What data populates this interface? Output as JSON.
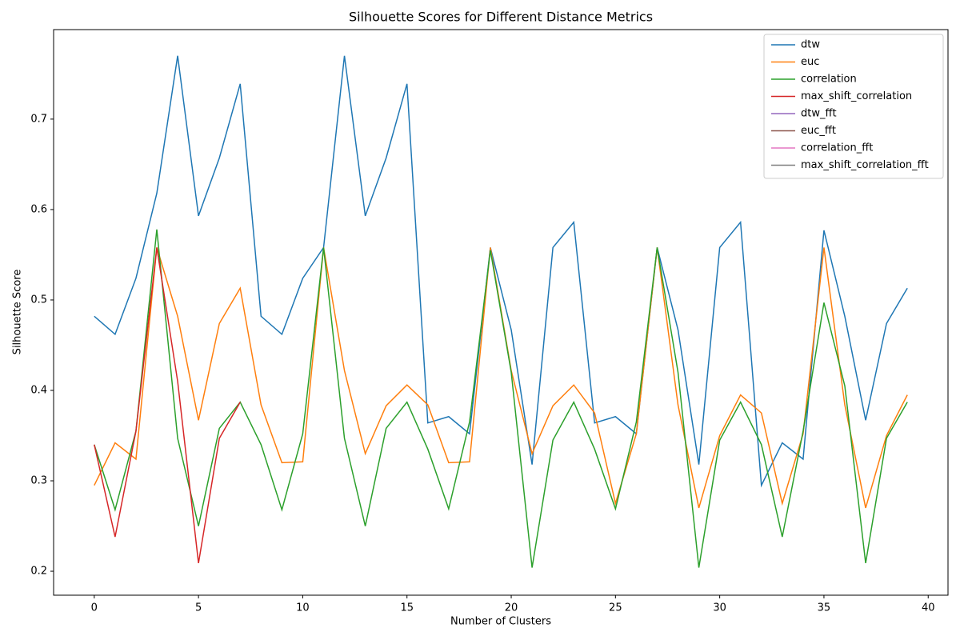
{
  "chart_data": {
    "type": "line",
    "title": "Silhouette Scores for Different Distance Metrics",
    "x_label": "Number of Clusters",
    "y_label": "Silhouette Score",
    "x": [
      0,
      1,
      2,
      3,
      4,
      5,
      6,
      7,
      8,
      9,
      10,
      11,
      12,
      13,
      14,
      15,
      16,
      17,
      18,
      19,
      20,
      21,
      22,
      23,
      24,
      25,
      26,
      27,
      28,
      29,
      30,
      31,
      32,
      33,
      34,
      35,
      36,
      37,
      38,
      39
    ],
    "series": [
      {
        "name": "dtw",
        "color": "#1f77b4",
        "values": [
          0.482,
          0.462,
          0.524,
          0.618,
          0.77,
          0.593,
          0.657,
          0.739,
          0.482,
          0.462,
          0.524,
          0.558,
          0.77,
          0.593,
          0.657,
          0.739,
          0.364,
          0.371,
          0.352,
          0.558,
          0.467,
          0.318,
          0.558,
          0.586,
          0.364,
          0.371,
          0.352,
          0.558,
          0.467,
          0.318,
          0.558,
          0.586,
          0.295,
          0.342,
          0.324,
          0.577,
          0.482,
          0.367,
          0.474,
          0.513
        ]
      },
      {
        "name": "euc",
        "color": "#ff7f0e",
        "values": [
          0.295,
          0.342,
          0.324,
          0.558,
          0.482,
          0.367,
          0.474,
          0.513,
          0.384,
          0.32,
          0.321,
          0.558,
          0.422,
          0.33,
          0.383,
          0.406,
          0.384,
          0.32,
          0.321,
          0.558,
          0.422,
          0.33,
          0.383,
          0.406,
          0.375,
          0.275,
          0.352,
          0.558,
          0.384,
          0.27,
          0.35,
          0.395,
          0.375,
          0.275,
          0.352,
          0.558,
          0.384,
          0.27,
          0.35,
          0.395
        ]
      },
      {
        "name": "correlation",
        "color": "#2ca02c",
        "values": [
          0.34,
          0.268,
          0.355,
          0.578,
          0.347,
          0.25,
          0.358,
          0.387,
          0.34,
          0.268,
          0.352,
          0.558,
          0.347,
          0.25,
          0.358,
          0.387,
          0.335,
          0.269,
          0.365,
          0.555,
          0.42,
          0.204,
          0.345,
          0.387,
          0.335,
          0.269,
          0.365,
          0.558,
          0.42,
          0.204,
          0.345,
          0.387,
          0.34,
          0.238,
          0.355,
          0.497,
          0.405,
          0.209,
          0.347,
          0.387
        ]
      },
      {
        "name": "max_shift_correlation",
        "color": "#d62728",
        "values": [
          0.34,
          0.238,
          0.355,
          0.558,
          0.41,
          0.209,
          0.347,
          0.387,
          null,
          null,
          null,
          null,
          null,
          null,
          null,
          null,
          null,
          null,
          null,
          null,
          null,
          null,
          null,
          null,
          null,
          null,
          null,
          null,
          null,
          null,
          null,
          null,
          null,
          null,
          null,
          null,
          null,
          null,
          null,
          null
        ]
      },
      {
        "name": "dtw_fft",
        "color": "#9467bd",
        "values": [
          null,
          null,
          null,
          null,
          null,
          null,
          null,
          null,
          null,
          null,
          null,
          null,
          null,
          null,
          null,
          null,
          null,
          null,
          null,
          null,
          null,
          null,
          null,
          null,
          null,
          null,
          null,
          null,
          null,
          null,
          null,
          null,
          null,
          null,
          null,
          null,
          null,
          null,
          null,
          null
        ]
      },
      {
        "name": "euc_fft",
        "color": "#8c564b",
        "values": [
          null,
          null,
          null,
          null,
          null,
          null,
          null,
          null,
          null,
          null,
          null,
          null,
          null,
          null,
          null,
          null,
          null,
          null,
          null,
          null,
          null,
          null,
          null,
          null,
          null,
          null,
          null,
          null,
          null,
          null,
          null,
          null,
          null,
          null,
          null,
          null,
          null,
          null,
          null,
          null
        ]
      },
      {
        "name": "correlation_fft",
        "color": "#e377c2",
        "values": [
          null,
          null,
          null,
          null,
          null,
          null,
          null,
          null,
          null,
          null,
          null,
          null,
          null,
          null,
          null,
          null,
          null,
          null,
          null,
          null,
          null,
          null,
          null,
          null,
          null,
          null,
          null,
          null,
          null,
          null,
          null,
          null,
          null,
          null,
          null,
          null,
          null,
          null,
          null,
          null
        ]
      },
      {
        "name": "max_shift_correlation_fft",
        "color": "#7f7f7f",
        "values": [
          null,
          null,
          null,
          null,
          null,
          null,
          null,
          null,
          null,
          null,
          null,
          null,
          null,
          null,
          null,
          null,
          null,
          null,
          null,
          null,
          null,
          null,
          null,
          null,
          null,
          null,
          null,
          null,
          null,
          null,
          null,
          null,
          null,
          null,
          null,
          null,
          null,
          null,
          null,
          null
        ]
      }
    ],
    "xlim": [
      -1.95,
      40.95
    ],
    "ylim": [
      0.1735,
      0.799
    ],
    "xticks": [
      0,
      5,
      10,
      15,
      20,
      25,
      30,
      35,
      40
    ],
    "yticks": [
      0.2,
      0.3,
      0.4,
      0.5,
      0.6,
      0.7
    ],
    "legend": "upper right",
    "grid": false
  }
}
